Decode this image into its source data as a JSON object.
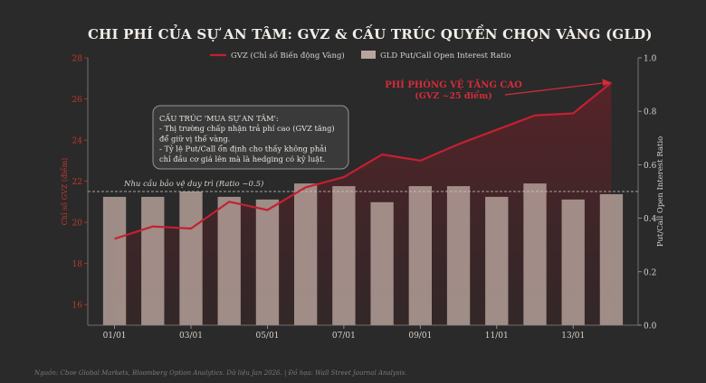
{
  "title": "CHI PHÍ CỦA SỰ AN TÂM: GVZ & CẤU TRÚC QUYỀN CHỌN VÀNG (GLD)",
  "source": "Nguồn: Cboe Global Markets, Bloomberg Option Analytics. Dữ liệu Jan 2026. | Đồ họa: Wall Street Journal Analysis.",
  "colors": {
    "background": "#2a2a2a",
    "line": "#c42032",
    "bar": "#b8a49c",
    "left_axis": "#c0392b",
    "text": "#e8e2dc",
    "callout_red": "#d42c3a"
  },
  "chart_data": {
    "type": "bar+line",
    "x_positions": [
      0,
      1,
      2,
      3,
      4,
      5,
      6,
      7,
      8,
      9,
      10,
      11,
      12,
      13
    ],
    "x_ticks": [
      {
        "pos": 0,
        "label": "01/01"
      },
      {
        "pos": 2,
        "label": "03/01"
      },
      {
        "pos": 4,
        "label": "05/01"
      },
      {
        "pos": 6,
        "label": "07/01"
      },
      {
        "pos": 8,
        "label": "09/01"
      },
      {
        "pos": 10,
        "label": "11/01"
      },
      {
        "pos": 12,
        "label": "13/01"
      }
    ],
    "series": [
      {
        "name": "GVZ (Chỉ số Biến động Vàng)",
        "type": "line",
        "axis": "left",
        "values": [
          19.2,
          19.8,
          19.7,
          21.0,
          20.6,
          21.7,
          22.2,
          23.3,
          23.0,
          23.8,
          24.5,
          25.2,
          25.3,
          26.8
        ]
      },
      {
        "name": "GLD Put/Call Open Interest Ratio",
        "type": "bar",
        "axis": "right",
        "values": [
          0.48,
          0.48,
          0.5,
          0.48,
          0.47,
          0.53,
          0.52,
          0.46,
          0.52,
          0.52,
          0.48,
          0.53,
          0.47,
          0.49
        ]
      }
    ],
    "y_left": {
      "label": "Chỉ số GVZ (điểm)",
      "range": [
        15,
        28
      ],
      "ticks": [
        16,
        18,
        20,
        22,
        24,
        26,
        28
      ]
    },
    "y_right": {
      "label": "Put/Call Open Interest Ratio",
      "range": [
        0,
        1.0
      ],
      "ticks": [
        "0.0",
        "0.2",
        "0.4",
        "0.6",
        "0.8",
        "1.0"
      ]
    },
    "reference_line": {
      "value": 0.5,
      "axis": "right",
      "label": "Nhu cầu bảo vệ duy trì (Ratio ~0.5)"
    },
    "legend_position": "top-center",
    "annotations": {
      "callout": {
        "line1": "PHÍ PHÒNG VỆ TĂNG CAO",
        "line2": "(GVZ ~25 điểm)"
      },
      "textbox": {
        "lines": [
          "CẤU TRÚC 'MUA SỰ AN TÂM':",
          "- Thị trường chấp nhận trả phí cao (GVZ tăng)",
          "  để giữ vị thế vàng.",
          "- Tỷ lệ Put/Call ổn định cho thấy không phải",
          "  chỉ đầu cơ giá lên mà là hedging có kỷ luật."
        ]
      }
    }
  }
}
